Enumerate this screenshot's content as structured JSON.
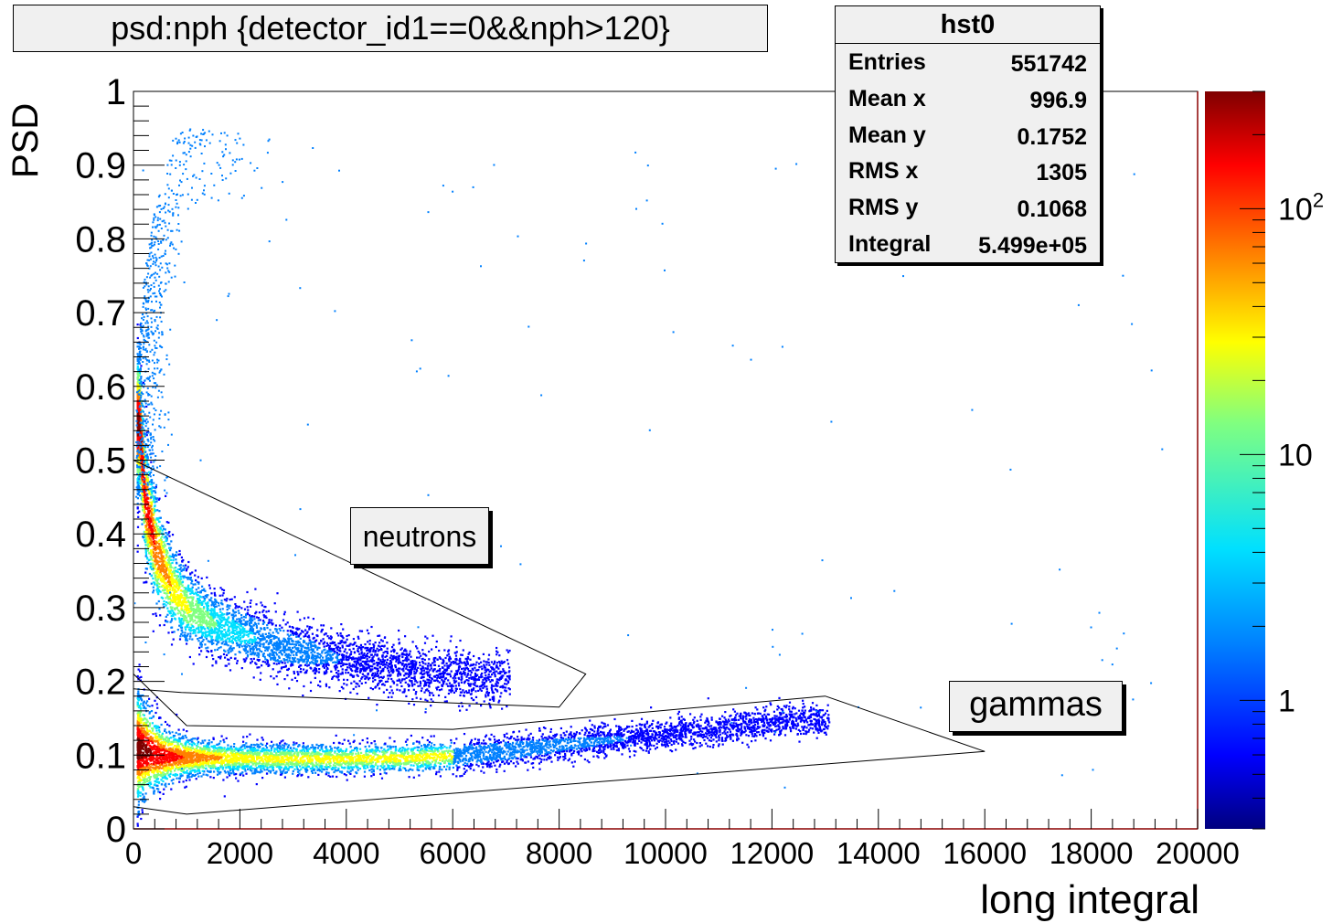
{
  "title": "psd:nph {detector_id1==0&&nph>120}",
  "stats": {
    "name": "hst0",
    "rows": [
      {
        "label": "Entries",
        "value": "551742"
      },
      {
        "label": "Mean x",
        "value": "996.9"
      },
      {
        "label": "Mean y",
        "value": "0.1752"
      },
      {
        "label": "RMS x",
        "value": "1305"
      },
      {
        "label": "RMS y",
        "value": "0.1068"
      },
      {
        "label": "Integral",
        "value": "5.499e+05"
      }
    ]
  },
  "chart_data": {
    "type": "heatmap",
    "title": "psd:nph {detector_id1==0&&nph>120}",
    "xlabel": "long integral",
    "ylabel": "PSD",
    "xlim": [
      0,
      20000
    ],
    "ylim": [
      0,
      1
    ],
    "x_ticks": [
      "0",
      "2000",
      "4000",
      "6000",
      "8000",
      "10000",
      "12000",
      "14000",
      "16000",
      "18000",
      "20000"
    ],
    "y_ticks": [
      "0",
      "0.1",
      "0.2",
      "0.3",
      "0.4",
      "0.5",
      "0.6",
      "0.7",
      "0.8",
      "0.9",
      "1"
    ],
    "colorbar": {
      "scale": "log",
      "range": [
        0.3,
        300
      ],
      "tick_labels": [
        {
          "value": 1,
          "text": "1"
        },
        {
          "value": 10,
          "text": "10"
        },
        {
          "value": 100,
          "text": "10",
          "sup": "2"
        }
      ],
      "colors": [
        "#00007f",
        "#0000ff",
        "#0080ff",
        "#00e0ff",
        "#80ff80",
        "#ffff00",
        "#ff8000",
        "#ff0000",
        "#7f0000"
      ]
    },
    "cuts": [
      {
        "label": "neutrons",
        "points": [
          [
            0,
            0.5
          ],
          [
            8500,
            0.21
          ],
          [
            8000,
            0.165
          ],
          [
            900,
            0.185
          ],
          [
            0,
            0.19
          ]
        ]
      },
      {
        "label": "gammas",
        "points": [
          [
            0,
            0.21
          ],
          [
            1000,
            0.14
          ],
          [
            6000,
            0.135
          ],
          [
            13000,
            0.18
          ],
          [
            16000,
            0.105
          ],
          [
            1000,
            0.02
          ],
          [
            0,
            0.03
          ]
        ]
      }
    ],
    "bands": [
      {
        "name": "neutron",
        "points": [
          [
            100,
            0.55
          ],
          [
            200,
            0.45
          ],
          [
            400,
            0.38
          ],
          [
            700,
            0.33
          ],
          [
            1000,
            0.3
          ],
          [
            1500,
            0.28
          ],
          [
            2000,
            0.265
          ],
          [
            3000,
            0.245
          ],
          [
            4000,
            0.23
          ],
          [
            5000,
            0.22
          ],
          [
            6000,
            0.21
          ],
          [
            7000,
            0.205
          ]
        ]
      },
      {
        "name": "gamma",
        "points": [
          [
            100,
            0.11
          ],
          [
            500,
            0.1
          ],
          [
            1000,
            0.098
          ],
          [
            2000,
            0.097
          ],
          [
            3000,
            0.096
          ],
          [
            4000,
            0.096
          ],
          [
            5000,
            0.097
          ],
          [
            6000,
            0.1
          ],
          [
            7000,
            0.107
          ],
          [
            8000,
            0.115
          ],
          [
            9000,
            0.122
          ],
          [
            10000,
            0.13
          ],
          [
            11000,
            0.137
          ],
          [
            12000,
            0.145
          ],
          [
            13000,
            0.15
          ]
        ]
      }
    ]
  }
}
